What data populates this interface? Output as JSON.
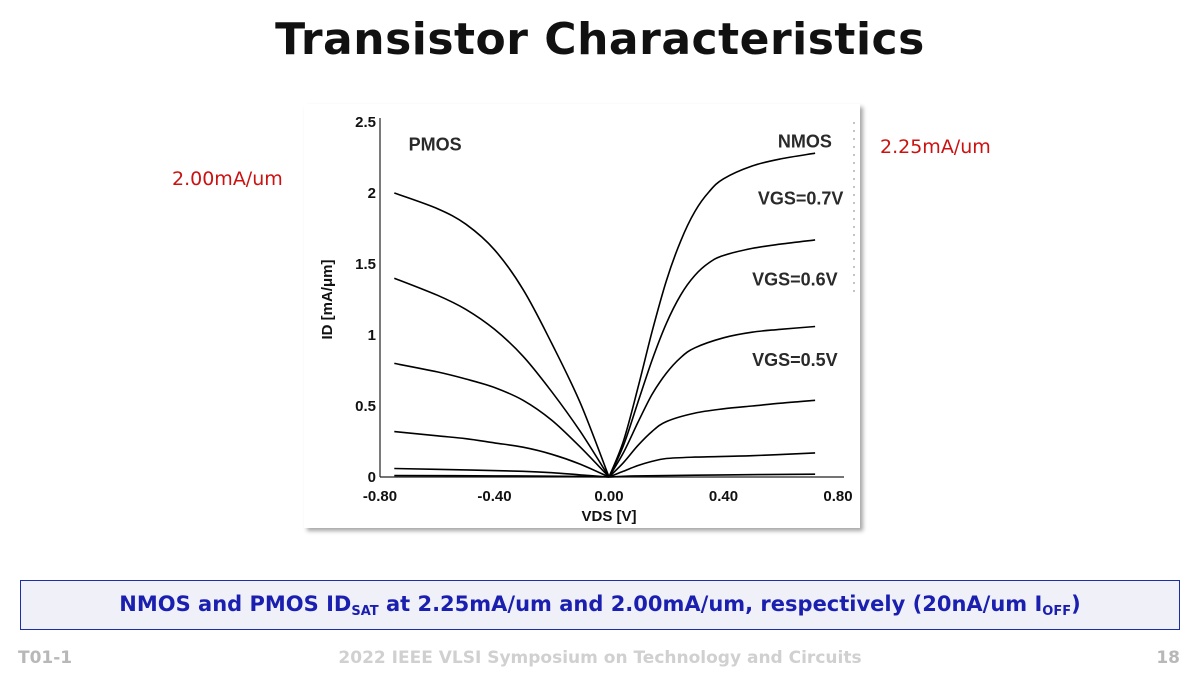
{
  "slide": {
    "title": "Transistor Characteristics",
    "note_left": "2.00mA/um",
    "note_right": "2.25mA/um",
    "banner": {
      "part1": "NMOS and PMOS ID",
      "sub1": "SAT",
      "part2": " at 2.25mA/um and 2.00mA/um, respectively (20nA/um I",
      "sub2": "OFF",
      "part3": ")"
    },
    "footer_left": "T01-1",
    "footer_center": "2022 IEEE VLSI Symposium on Technology and Circuits",
    "footer_right": "18"
  },
  "colors": {
    "title": "#111111",
    "note": "#cc1111",
    "banner_text": "#1b1fb0",
    "banner_border": "#1d2ea8",
    "footer": "#b8b8b8",
    "curve": "#000000"
  },
  "chart_data": {
    "type": "line",
    "xlabel": "VDS [V]",
    "ylabel": "ID [mA/μm]",
    "xlim": [
      -0.8,
      0.8
    ],
    "ylim": [
      0,
      2.5
    ],
    "x_ticks": [
      "-0.80",
      "-0.40",
      "0.00",
      "0.40",
      "0.80"
    ],
    "y_ticks": [
      "0",
      "0.5",
      "1",
      "1.5",
      "2",
      "2.5"
    ],
    "annotations": [
      "PMOS",
      "NMOS",
      "VGS=0.7V",
      "VGS=0.6V",
      "VGS=0.5V"
    ],
    "series": [
      {
        "values": [
          [
            -0.75,
            2.0
          ],
          [
            -0.6,
            1.89
          ],
          [
            -0.5,
            1.78
          ],
          [
            -0.4,
            1.6
          ],
          [
            -0.3,
            1.32
          ],
          [
            -0.2,
            0.94
          ],
          [
            -0.1,
            0.52
          ],
          [
            0,
            0
          ]
        ]
      },
      {
        "values": [
          [
            -0.75,
            1.4
          ],
          [
            -0.6,
            1.28
          ],
          [
            -0.5,
            1.18
          ],
          [
            -0.4,
            1.04
          ],
          [
            -0.3,
            0.85
          ],
          [
            -0.2,
            0.6
          ],
          [
            -0.1,
            0.32
          ],
          [
            0,
            0
          ]
        ]
      },
      {
        "values": [
          [
            -0.75,
            0.8
          ],
          [
            -0.6,
            0.74
          ],
          [
            -0.5,
            0.69
          ],
          [
            -0.4,
            0.63
          ],
          [
            -0.3,
            0.54
          ],
          [
            -0.2,
            0.4
          ],
          [
            -0.1,
            0.21
          ],
          [
            0,
            0
          ]
        ]
      },
      {
        "values": [
          [
            -0.75,
            0.32
          ],
          [
            -0.6,
            0.29
          ],
          [
            -0.5,
            0.27
          ],
          [
            -0.4,
            0.24
          ],
          [
            -0.3,
            0.21
          ],
          [
            -0.2,
            0.16
          ],
          [
            -0.1,
            0.09
          ],
          [
            0,
            0
          ]
        ]
      },
      {
        "values": [
          [
            -0.75,
            0.06
          ],
          [
            -0.5,
            0.05
          ],
          [
            -0.3,
            0.04
          ],
          [
            -0.2,
            0.03
          ],
          [
            -0.1,
            0.015
          ],
          [
            0,
            0
          ]
        ]
      },
      {
        "values": [
          [
            -0.75,
            0.01
          ],
          [
            -0.4,
            0.008
          ],
          [
            -0.1,
            0.004
          ],
          [
            0,
            0
          ]
        ]
      },
      {
        "values": [
          [
            0,
            0
          ],
          [
            0.05,
            0.25
          ],
          [
            0.1,
            0.62
          ],
          [
            0.15,
            1.02
          ],
          [
            0.2,
            1.38
          ],
          [
            0.25,
            1.66
          ],
          [
            0.3,
            1.87
          ],
          [
            0.35,
            2.01
          ],
          [
            0.4,
            2.1
          ],
          [
            0.5,
            2.19
          ],
          [
            0.6,
            2.24
          ],
          [
            0.72,
            2.28
          ]
        ]
      },
      {
        "values": [
          [
            0,
            0
          ],
          [
            0.05,
            0.22
          ],
          [
            0.1,
            0.52
          ],
          [
            0.15,
            0.82
          ],
          [
            0.2,
            1.08
          ],
          [
            0.25,
            1.28
          ],
          [
            0.3,
            1.42
          ],
          [
            0.35,
            1.51
          ],
          [
            0.4,
            1.56
          ],
          [
            0.5,
            1.61
          ],
          [
            0.6,
            1.64
          ],
          [
            0.72,
            1.67
          ]
        ]
      },
      {
        "values": [
          [
            0,
            0
          ],
          [
            0.05,
            0.17
          ],
          [
            0.1,
            0.38
          ],
          [
            0.15,
            0.58
          ],
          [
            0.2,
            0.73
          ],
          [
            0.25,
            0.84
          ],
          [
            0.3,
            0.91
          ],
          [
            0.4,
            0.98
          ],
          [
            0.5,
            1.02
          ],
          [
            0.6,
            1.04
          ],
          [
            0.72,
            1.06
          ]
        ]
      },
      {
        "values": [
          [
            0,
            0
          ],
          [
            0.05,
            0.1
          ],
          [
            0.1,
            0.22
          ],
          [
            0.15,
            0.32
          ],
          [
            0.2,
            0.39
          ],
          [
            0.3,
            0.45
          ],
          [
            0.4,
            0.48
          ],
          [
            0.5,
            0.5
          ],
          [
            0.6,
            0.52
          ],
          [
            0.72,
            0.54
          ]
        ]
      },
      {
        "values": [
          [
            0,
            0
          ],
          [
            0.05,
            0.04
          ],
          [
            0.1,
            0.08
          ],
          [
            0.15,
            0.11
          ],
          [
            0.2,
            0.13
          ],
          [
            0.3,
            0.14
          ],
          [
            0.5,
            0.15
          ],
          [
            0.72,
            0.17
          ]
        ]
      },
      {
        "values": [
          [
            0,
            0
          ],
          [
            0.1,
            0.008
          ],
          [
            0.4,
            0.015
          ],
          [
            0.72,
            0.02
          ]
        ]
      }
    ],
    "grid": false,
    "legend": "none"
  }
}
